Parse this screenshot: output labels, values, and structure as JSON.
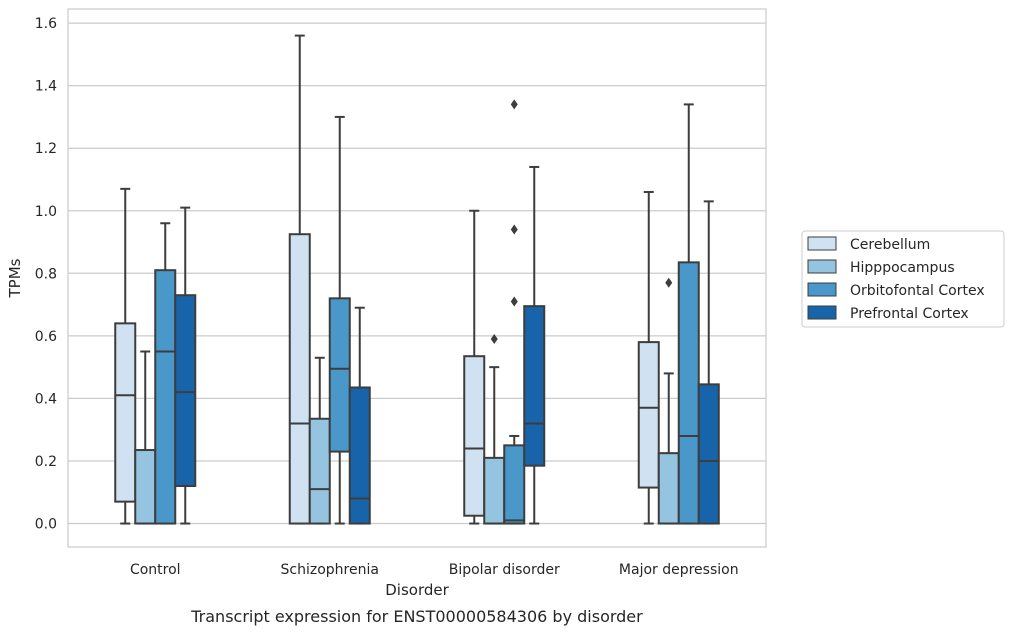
{
  "chart_data": {
    "type": "box",
    "caption": "Transcript expression for ENST00000584306 by disorder",
    "xlabel": "Disorder",
    "ylabel": "TPMs",
    "ylim": [
      -0.075,
      1.645
    ],
    "yticks": [
      0.0,
      0.2,
      0.4,
      0.6,
      0.8,
      1.0,
      1.2,
      1.4,
      1.6
    ],
    "ytick_labels": [
      "0.0",
      "0.2",
      "0.4",
      "0.6",
      "0.8",
      "1.0",
      "1.2",
      "1.4",
      "1.6"
    ],
    "grid": "horizontal",
    "legend_position": "right",
    "categories": [
      "Control",
      "Schizophrenia",
      "Bipolar disorder",
      "Major depression"
    ],
    "series": [
      {
        "name": "Cerebellum",
        "color": "#d0e1f2",
        "boxes": [
          {
            "whislo": 0.0,
            "q1": 0.07,
            "med": 0.41,
            "q3": 0.64,
            "whishi": 1.07,
            "fliers": []
          },
          {
            "whislo": 0.0,
            "q1": 0.0,
            "med": 0.32,
            "q3": 0.925,
            "whishi": 1.56,
            "fliers": []
          },
          {
            "whislo": 0.0,
            "q1": 0.025,
            "med": 0.24,
            "q3": 0.535,
            "whishi": 1.0,
            "fliers": []
          },
          {
            "whislo": 0.0,
            "q1": 0.115,
            "med": 0.37,
            "q3": 0.58,
            "whishi": 1.06,
            "fliers": []
          }
        ]
      },
      {
        "name": "Hipppocampus",
        "color": "#94c4df",
        "boxes": [
          {
            "whislo": 0.0,
            "q1": 0.0,
            "med": 0.0,
            "q3": 0.235,
            "whishi": 0.55,
            "fliers": []
          },
          {
            "whislo": 0.0,
            "q1": 0.0,
            "med": 0.11,
            "q3": 0.335,
            "whishi": 0.53,
            "fliers": []
          },
          {
            "whislo": 0.0,
            "q1": 0.0,
            "med": 0.0,
            "q3": 0.21,
            "whishi": 0.5,
            "fliers": [
              0.59
            ]
          },
          {
            "whislo": 0.0,
            "q1": 0.0,
            "med": 0.0,
            "q3": 0.225,
            "whishi": 0.48,
            "fliers": [
              0.77
            ]
          }
        ]
      },
      {
        "name": "Orbitofontal Cortex",
        "color": "#4a98c9",
        "boxes": [
          {
            "whislo": 0.0,
            "q1": 0.0,
            "med": 0.55,
            "q3": 0.81,
            "whishi": 0.96,
            "fliers": []
          },
          {
            "whislo": 0.0,
            "q1": 0.23,
            "med": 0.495,
            "q3": 0.72,
            "whishi": 1.3,
            "fliers": []
          },
          {
            "whislo": 0.0,
            "q1": 0.0,
            "med": 0.01,
            "q3": 0.25,
            "whishi": 0.28,
            "fliers": [
              0.71,
              0.94,
              1.34
            ]
          },
          {
            "whislo": 0.0,
            "q1": 0.0,
            "med": 0.28,
            "q3": 0.835,
            "whishi": 1.34,
            "fliers": []
          }
        ]
      },
      {
        "name": "Prefrontal Cortex",
        "color": "#1764ab",
        "boxes": [
          {
            "whislo": 0.0,
            "q1": 0.12,
            "med": 0.42,
            "q3": 0.73,
            "whishi": 1.01,
            "fliers": []
          },
          {
            "whislo": 0.0,
            "q1": 0.0,
            "med": 0.08,
            "q3": 0.435,
            "whishi": 0.69,
            "fliers": []
          },
          {
            "whislo": 0.0,
            "q1": 0.185,
            "med": 0.32,
            "q3": 0.695,
            "whishi": 1.14,
            "fliers": []
          },
          {
            "whislo": 0.0,
            "q1": 0.0,
            "med": 0.2,
            "q3": 0.445,
            "whishi": 1.03,
            "fliers": []
          }
        ]
      }
    ]
  }
}
